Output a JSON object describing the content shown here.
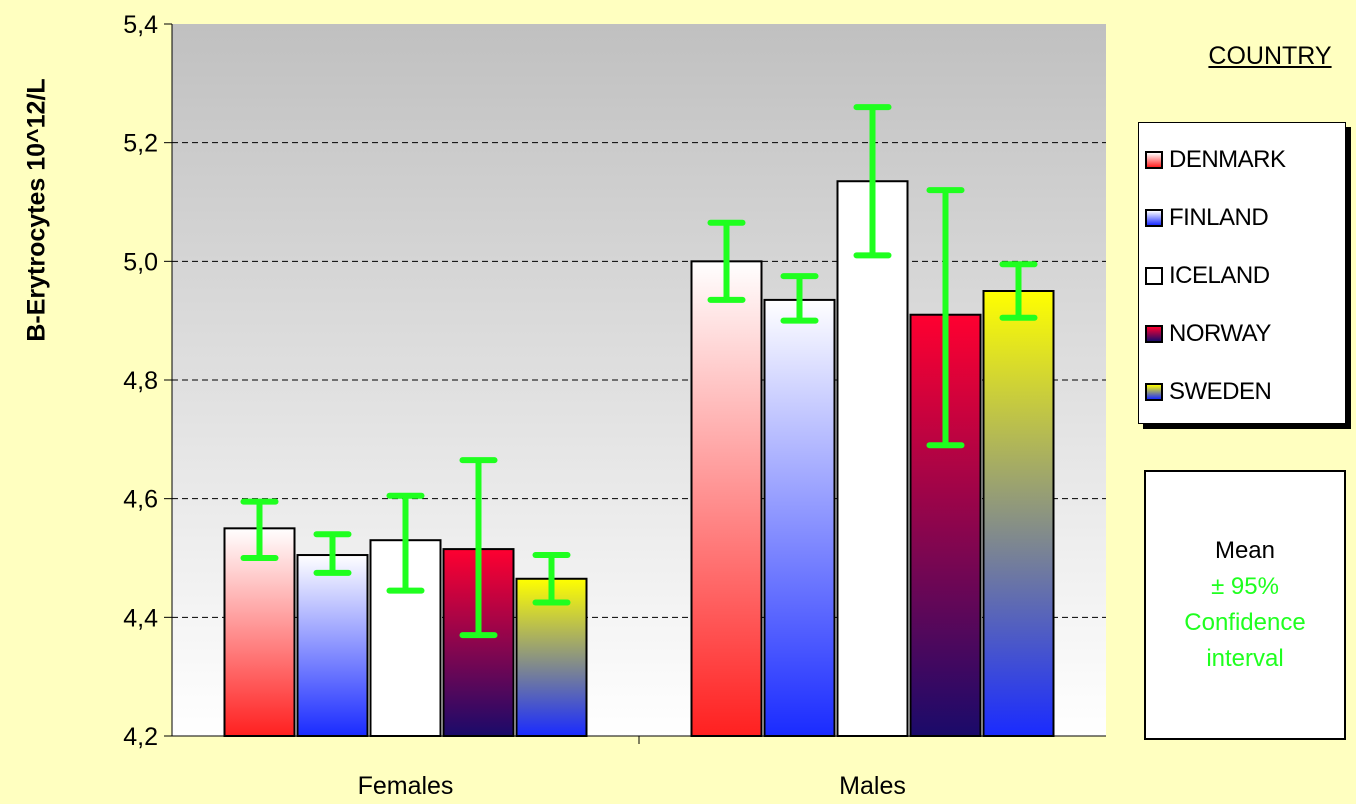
{
  "chart_data": {
    "type": "bar",
    "categories": [
      "Females",
      "Males"
    ],
    "ylabel": "B-Erytrocytes 10^12/L",
    "xlabel": "",
    "ylim": [
      4.2,
      5.4
    ],
    "yticks": [
      "4,2",
      "4,4",
      "4,6",
      "4,8",
      "5,0",
      "5,2",
      "5,4"
    ],
    "grid": true,
    "legend_title": "COUNTRY",
    "legend_position": "right",
    "series": [
      {
        "name": "DENMARK",
        "values": [
          4.55,
          5.0
        ],
        "ci_low": [
          4.5,
          4.935
        ],
        "ci_high": [
          4.595,
          5.065
        ]
      },
      {
        "name": "FINLAND",
        "values": [
          4.505,
          4.935
        ],
        "ci_low": [
          4.475,
          4.9
        ],
        "ci_high": [
          4.54,
          4.975
        ]
      },
      {
        "name": "ICELAND",
        "values": [
          4.53,
          5.135
        ],
        "ci_low": [
          4.445,
          5.01
        ],
        "ci_high": [
          4.605,
          5.26
        ]
      },
      {
        "name": "NORWAY",
        "values": [
          4.515,
          4.91
        ],
        "ci_low": [
          4.37,
          4.69
        ],
        "ci_high": [
          4.665,
          5.12
        ]
      },
      {
        "name": "SWEDEN",
        "values": [
          4.465,
          4.95
        ],
        "ci_low": [
          4.425,
          4.905
        ],
        "ci_high": [
          4.505,
          4.995
        ]
      }
    ],
    "colors": {
      "DENMARK": [
        "#ffffff",
        "#ff2020"
      ],
      "FINLAND": [
        "#ffffff",
        "#1a2bff"
      ],
      "ICELAND": [
        "#ffffff",
        "#ffffff"
      ],
      "NORWAY": [
        "#ff0030",
        "#1a0a6a"
      ],
      "SWEDEN": [
        "#ffff00",
        "#1a2bff"
      ],
      "error_bar": "#1fff1f"
    }
  },
  "note": {
    "mean": "Mean",
    "ci_line1": "± 95%",
    "ci_line2": "Confidence",
    "ci_line3": "interval"
  }
}
